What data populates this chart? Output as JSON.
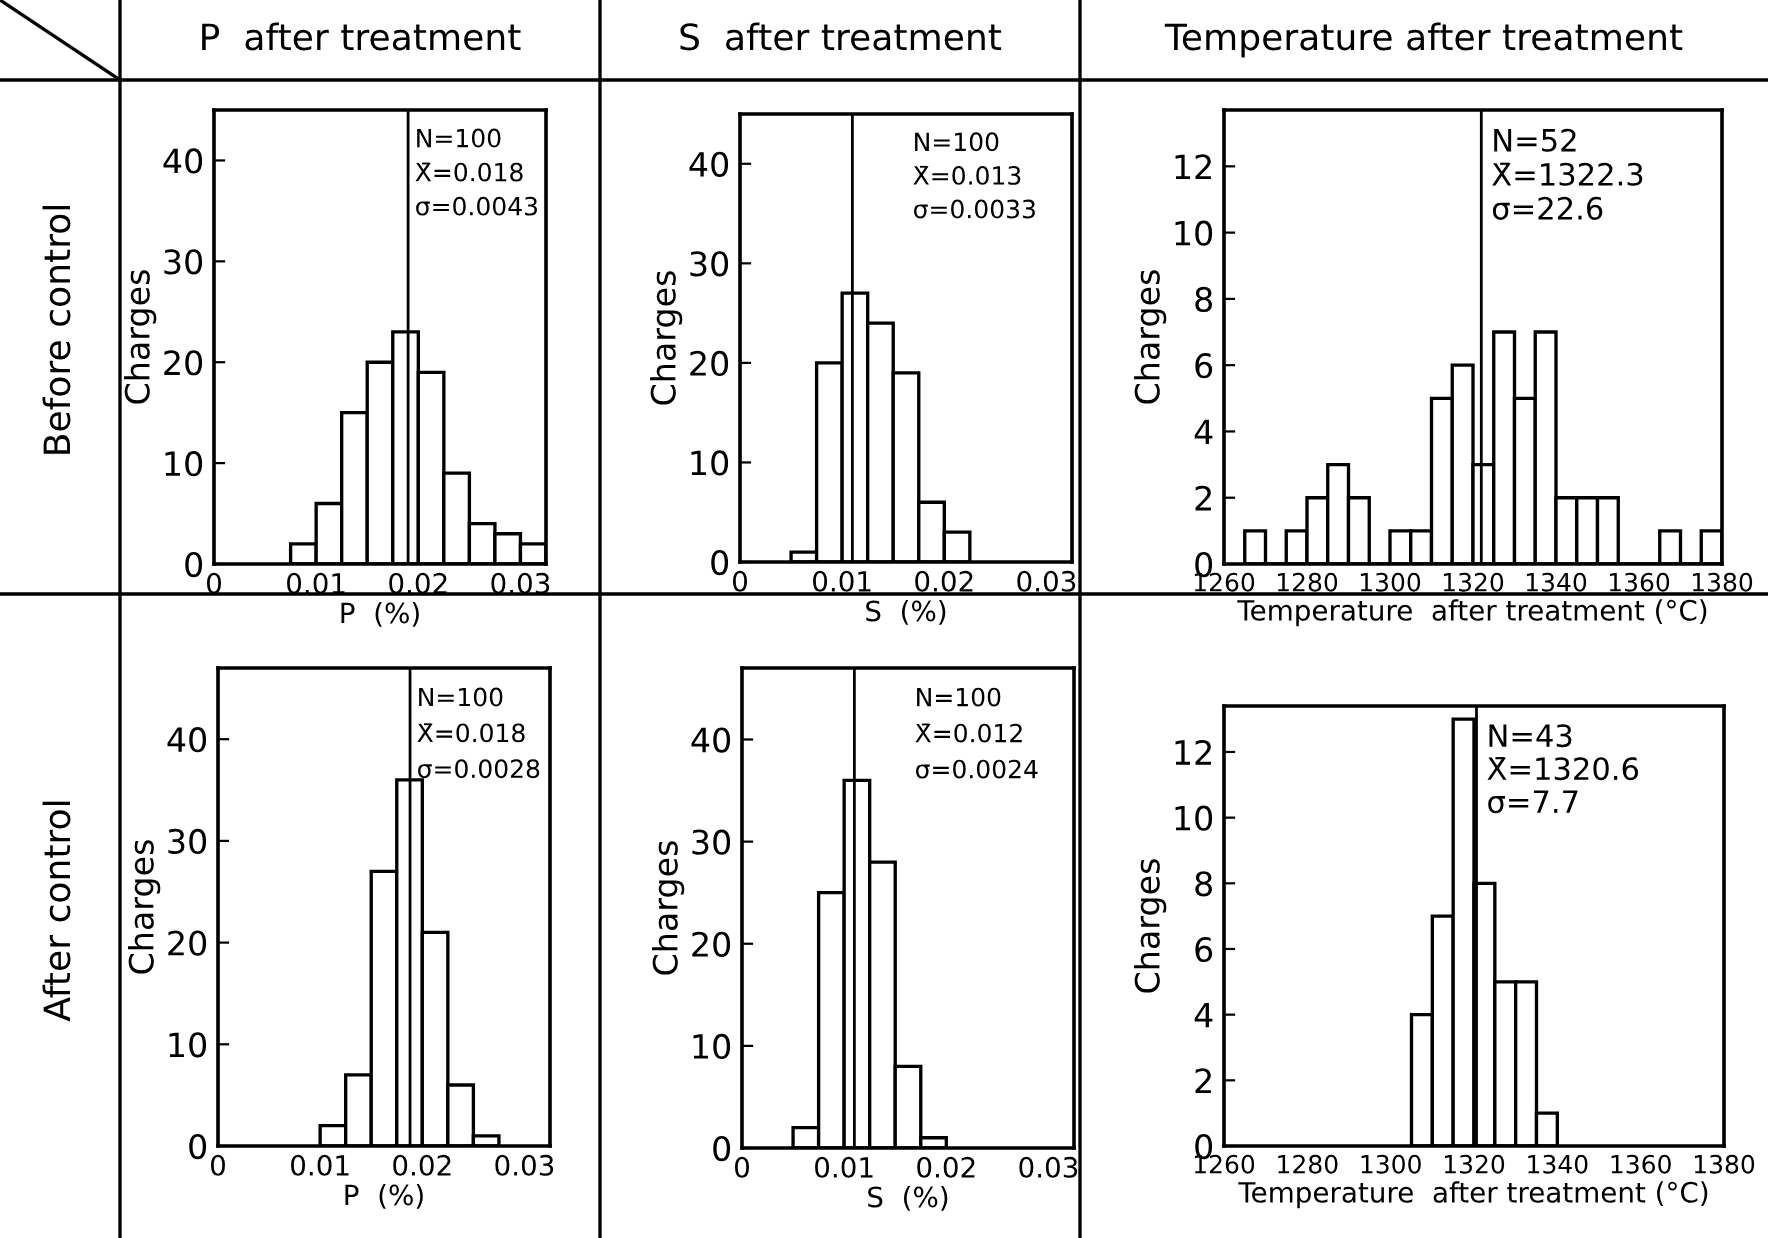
{
  "chart_data": [
    {
      "type": "histogram",
      "title": "P  after treatment",
      "xlabel": "P  (%)",
      "ylabel": "Charges",
      "bins": [
        0.0075,
        0.01,
        0.0125,
        0.015,
        0.0175,
        0.02,
        0.0225,
        0.025,
        0.0275,
        0.03,
        0.0325
      ],
      "values": [
        2,
        6,
        15,
        20,
        23,
        19,
        9,
        4,
        3,
        2
      ],
      "color": "#ffffff",
      "xlim": [
        0,
        0.0325
      ],
      "xticks": [
        0,
        0.01,
        0.02,
        0.03
      ],
      "ylim": [
        0,
        45
      ],
      "yticks": [
        0,
        10,
        20,
        30,
        40
      ],
      "ref_lines": [
        {
          "axis": "x",
          "value": 0.019
        }
      ],
      "annotations": [
        "N=100",
        "X̄=0.018",
        "σ=0.0043",
        "Before control"
      ]
    },
    {
      "type": "histogram",
      "title": "S  after treatment",
      "xlabel": "S  (%)",
      "ylabel": "Charges",
      "bins": [
        0.005,
        0.0075,
        0.01,
        0.0125,
        0.015,
        0.0175,
        0.02,
        0.0225
      ],
      "values": [
        1,
        20,
        27,
        24,
        19,
        6,
        3
      ],
      "color": "#ffffff",
      "xlim": [
        0,
        0.0325
      ],
      "xticks": [
        0,
        0.01,
        0.02,
        0.03
      ],
      "ylim": [
        0,
        45
      ],
      "yticks": [
        0,
        10,
        20,
        30,
        40
      ],
      "ref_lines": [
        {
          "axis": "x",
          "value": 0.011
        }
      ],
      "annotations": [
        "N=100",
        "X̄=0.013",
        "σ=0.0033"
      ]
    },
    {
      "type": "histogram",
      "title": "Temperature after treatment",
      "xlabel": "Temperature  after treatment (°C)",
      "ylabel": "Charges",
      "bins": [
        1265,
        1270,
        1275,
        1280,
        1285,
        1290,
        1295,
        1300,
        1305,
        1310,
        1315,
        1320,
        1325,
        1330,
        1335,
        1340,
        1345,
        1350,
        1355,
        1360,
        1365,
        1370,
        1375,
        1380
      ],
      "values": [
        1,
        0,
        1,
        2,
        3,
        2,
        0,
        1,
        1,
        5,
        6,
        3,
        7,
        5,
        7,
        2,
        2,
        2,
        0,
        0,
        1,
        0,
        1
      ],
      "color": "#ffffff",
      "xlim": [
        1260,
        1380
      ],
      "xticks": [
        1260,
        1280,
        1300,
        1320,
        1340,
        1360,
        1380
      ],
      "ylim": [
        0,
        13.7
      ],
      "yticks": [
        0,
        2,
        4,
        6,
        8,
        10,
        12
      ],
      "ref_lines": [
        {
          "axis": "x",
          "value": 1322
        }
      ],
      "annotations": [
        "N=52",
        "X̄=1322.3",
        "σ=22.6"
      ]
    },
    {
      "type": "histogram",
      "xlabel": "P  (%)",
      "ylabel": "Charges",
      "bins": [
        0.01,
        0.0125,
        0.015,
        0.0175,
        0.02,
        0.0225,
        0.025,
        0.0275
      ],
      "values": [
        2,
        7,
        27,
        36,
        21,
        6,
        1
      ],
      "color": "#ffffff",
      "xlim": [
        0,
        0.0325
      ],
      "xticks": [
        0,
        0.01,
        0.02,
        0.03
      ],
      "ylim": [
        0,
        47
      ],
      "yticks": [
        0,
        10,
        20,
        30,
        40
      ],
      "ref_lines": [
        {
          "axis": "x",
          "value": 0.0188
        }
      ],
      "annotations": [
        "N=100",
        "X̄=0.018",
        "σ=0.0028",
        "After control"
      ]
    },
    {
      "type": "histogram",
      "xlabel": "S  (%)",
      "ylabel": "Charges",
      "bins": [
        0.005,
        0.0075,
        0.01,
        0.0125,
        0.015,
        0.0175,
        0.02
      ],
      "values": [
        2,
        25,
        36,
        28,
        8,
        1
      ],
      "color": "#ffffff",
      "xlim": [
        0,
        0.0325
      ],
      "xticks": [
        0,
        0.01,
        0.02,
        0.03
      ],
      "ylim": [
        0,
        47
      ],
      "yticks": [
        0,
        10,
        20,
        30,
        40
      ],
      "ref_lines": [
        {
          "axis": "x",
          "value": 0.011
        }
      ],
      "annotations": [
        "N=100",
        "X̄=0.012",
        "σ=0.0024"
      ]
    },
    {
      "type": "histogram",
      "xlabel": "Temperature  after treatment (°C)",
      "ylabel": "Charges",
      "bins": [
        1305,
        1310,
        1315,
        1320,
        1325,
        1330,
        1335,
        1340
      ],
      "values": [
        4,
        7,
        13,
        8,
        5,
        5,
        1
      ],
      "color": "#ffffff",
      "xlim": [
        1260,
        1380
      ],
      "xticks": [
        1260,
        1280,
        1300,
        1320,
        1340,
        1360,
        1380
      ],
      "ylim": [
        0,
        13.4
      ],
      "yticks": [
        0,
        2,
        4,
        6,
        8,
        10,
        12
      ],
      "ref_lines": [
        {
          "axis": "x",
          "value": 1320.6
        }
      ],
      "annotations": [
        "N=43",
        "X̄=1320.6",
        "σ=7.7"
      ]
    }
  ]
}
